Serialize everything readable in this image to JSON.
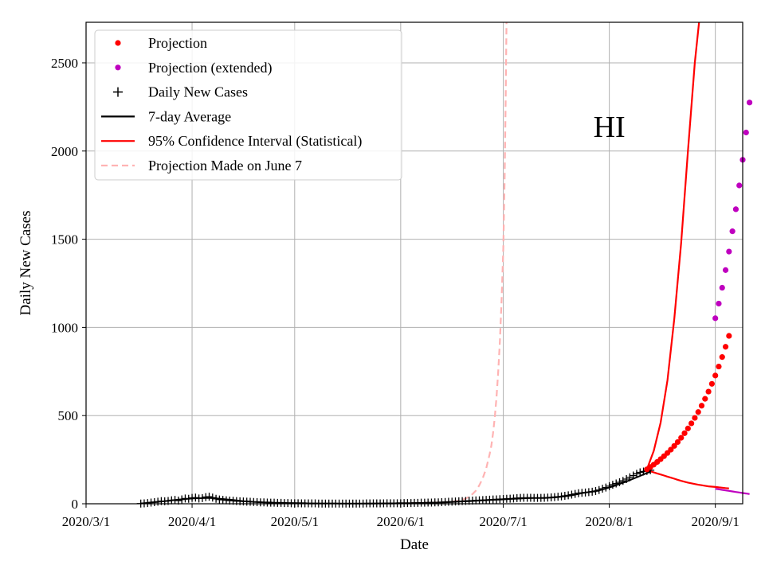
{
  "chart_data": {
    "type": "line",
    "title": "",
    "annotation": "HI",
    "xlabel": "Date",
    "ylabel": "Daily New Cases",
    "xlim": [
      0,
      192
    ],
    "ylim": [
      0,
      2730
    ],
    "x_ticks": [
      {
        "day": 0,
        "label": "2020/3/1"
      },
      {
        "day": 31,
        "label": "2020/4/1"
      },
      {
        "day": 61,
        "label": "2020/5/1"
      },
      {
        "day": 92,
        "label": "2020/6/1"
      },
      {
        "day": 122,
        "label": "2020/7/1"
      },
      {
        "day": 153,
        "label": "2020/8/1"
      },
      {
        "day": 184,
        "label": "2020/9/1"
      }
    ],
    "y_ticks": [
      0,
      500,
      1000,
      1500,
      2000,
      2500
    ],
    "grid": true,
    "legend_position": "top-left",
    "legend": [
      {
        "label": "Projection",
        "marker": "dot",
        "color": "#ff0000"
      },
      {
        "label": "Projection (extended)",
        "marker": "dot",
        "color": "#bf00bf"
      },
      {
        "label": "Daily New Cases",
        "marker": "plus",
        "color": "#000000"
      },
      {
        "label": "7-day Average",
        "marker": "line",
        "color": "#000000"
      },
      {
        "label": "95% Confidence Interval (Statistical)",
        "marker": "line",
        "color": "#ff0000"
      },
      {
        "label": "Projection Made on June 7",
        "marker": "dashed",
        "color": "#ffb3b3"
      }
    ],
    "daily_cases": {
      "start_day": 16,
      "values": [
        1,
        2,
        4,
        7,
        9,
        12,
        15,
        14,
        16,
        20,
        22,
        18,
        25,
        30,
        28,
        33,
        35,
        30,
        32,
        38,
        40,
        35,
        28,
        24,
        22,
        20,
        18,
        17,
        15,
        14,
        13,
        12,
        11,
        10,
        9,
        8,
        8,
        7,
        6,
        6,
        5,
        5,
        4,
        4,
        3,
        3,
        3,
        2,
        2,
        2,
        2,
        2,
        1,
        1,
        1,
        1,
        1,
        1,
        1,
        1,
        1,
        1,
        1,
        1,
        1,
        1,
        2,
        2,
        2,
        2,
        2,
        2,
        3,
        3,
        3,
        3,
        3,
        4,
        4,
        4,
        5,
        5,
        6,
        6,
        7,
        7,
        8,
        8,
        9,
        10,
        11,
        12,
        13,
        14,
        15,
        16,
        17,
        18,
        19,
        20,
        21,
        22,
        23,
        24,
        25,
        26,
        27,
        28,
        29,
        30,
        32,
        33,
        34,
        34,
        34,
        33,
        33,
        33,
        34,
        35,
        36,
        38,
        40,
        42,
        45,
        48,
        52,
        56,
        60,
        62,
        64,
        66,
        68,
        72,
        78,
        85,
        92,
        100,
        108,
        115,
        122,
        130,
        140,
        150,
        160,
        170,
        178,
        183,
        186,
        190
      ]
    },
    "seven_day_average": {
      "start_day": 16,
      "values": [
        2,
        3,
        5,
        7,
        9,
        11,
        13,
        15,
        17,
        19,
        21,
        23,
        25,
        27,
        28,
        30,
        31,
        31,
        32,
        33,
        33,
        32,
        31,
        29,
        27,
        25,
        23,
        21,
        19,
        17,
        15,
        14,
        12,
        11,
        10,
        9,
        8,
        7,
        7,
        6,
        6,
        5,
        5,
        4,
        4,
        4,
        3,
        3,
        3,
        2,
        2,
        2,
        2,
        2,
        2,
        2,
        2,
        2,
        1,
        1,
        1,
        1,
        1,
        1,
        1,
        1,
        1,
        1,
        1,
        2,
        2,
        2,
        2,
        2,
        2,
        3,
        3,
        3,
        3,
        3,
        4,
        4,
        4,
        5,
        5,
        6,
        6,
        7,
        7,
        8,
        9,
        10,
        11,
        12,
        13,
        14,
        15,
        16,
        17,
        18,
        19,
        20,
        21,
        22,
        23,
        24,
        25,
        26,
        27,
        28,
        29,
        30,
        31,
        32,
        32,
        33,
        33,
        33,
        33,
        34,
        35,
        36,
        38,
        40,
        42,
        45,
        48,
        52,
        56,
        60,
        63,
        66,
        69,
        72,
        76,
        81,
        86,
        92,
        98,
        105,
        112,
        119,
        126,
        134,
        142,
        150,
        158,
        166,
        174,
        182
      ]
    },
    "projection": {
      "start_day": 164,
      "values": [
        195,
        208,
        222,
        237,
        253,
        270,
        288,
        307,
        328,
        350,
        374,
        400,
        427,
        456,
        487,
        520,
        556,
        595,
        636,
        680,
        727,
        778,
        832,
        890,
        952
      ]
    },
    "projection_extended": {
      "start_day": 184,
      "values": [
        1052,
        1135,
        1225,
        1325,
        1430,
        1545,
        1670,
        1805,
        1950,
        2105,
        2275
      ]
    },
    "ci_upper": {
      "days": [
        164,
        166,
        168,
        170,
        172,
        174,
        176,
        178,
        180,
        181,
        181.5,
        182,
        182.5
      ],
      "values": [
        195,
        300,
        460,
        700,
        1050,
        1480,
        2000,
        2500,
        2870,
        3000,
        3300,
        3700,
        4000
      ]
    },
    "ci_lower": {
      "start_day": 164,
      "values": [
        190,
        184,
        178,
        172,
        166,
        160,
        154,
        148,
        142,
        136,
        130,
        125,
        120,
        116,
        112,
        108,
        105,
        102,
        99,
        97,
        95,
        93,
        91,
        89,
        87
      ]
    },
    "ci_lower_extended": {
      "start_day": 184,
      "values": [
        85,
        82,
        79,
        76,
        73,
        70,
        67,
        64,
        61,
        58,
        55
      ]
    },
    "june7_projection": {
      "days": [
        92,
        96,
        100,
        104,
        106,
        108,
        110,
        111,
        112,
        113,
        114,
        115,
        116,
        117,
        118,
        118.5,
        119,
        119.5,
        120,
        120.5,
        121,
        121.5,
        122,
        122.4,
        122.7,
        123
      ],
      "values": [
        2,
        4,
        6,
        8,
        10,
        14,
        22,
        30,
        40,
        55,
        75,
        105,
        145,
        200,
        280,
        330,
        400,
        490,
        600,
        740,
        920,
        1150,
        1450,
        1850,
        2300,
        2850
      ]
    }
  }
}
